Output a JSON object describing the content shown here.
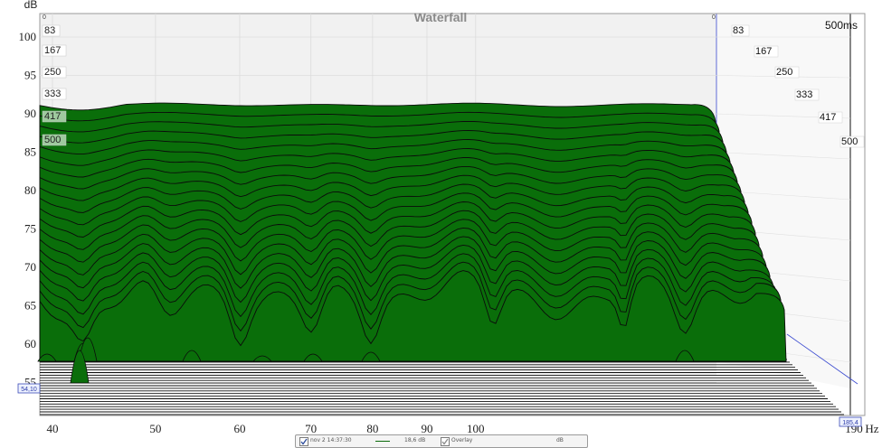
{
  "chart_data": {
    "type": "waterfall",
    "title": "Waterfall",
    "ylabel": "dB",
    "xunit": "Hz",
    "yticks": [
      "100",
      "95",
      "90",
      "85",
      "80",
      "75",
      "70",
      "65",
      "60",
      "55"
    ],
    "xticks": [
      "40",
      "50",
      "60",
      "70",
      "80",
      "90",
      "100"
    ],
    "xlast": "190",
    "ylim": [
      55,
      102
    ],
    "time_unit": "ms",
    "time_top_label": "500ms",
    "time_labels": [
      "83",
      "167",
      "250",
      "333",
      "417",
      "500"
    ],
    "first_top_label": "0",
    "back_top_label": "0",
    "marker_left": "54,10",
    "marker_right": "185,4",
    "fill_color": "#0a6e0a",
    "slices": 20
  },
  "legend": {
    "measurement": "nov 2 14:37:30",
    "offset": "18,6 dB",
    "overlay": "Overlay",
    "unit": "dB"
  }
}
